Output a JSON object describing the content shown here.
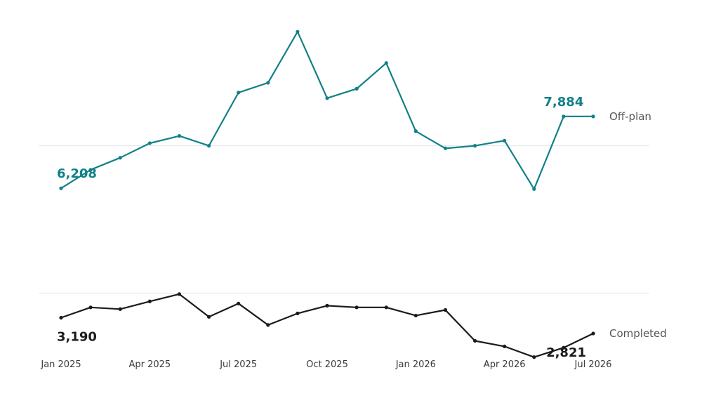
{
  "chart_data": {
    "type": "line",
    "x": [
      "Jan 2025",
      "Feb 2025",
      "Mar 2025",
      "Apr 2025",
      "May 2025",
      "Jun 2025",
      "Jul 2025",
      "Aug 2025",
      "Sep 2025",
      "Oct 2025",
      "Nov 2025",
      "Dec 2025",
      "Jan 2026",
      "Feb 2026",
      "Mar 2026",
      "Apr 2026",
      "May 2026",
      "Jun 2026",
      "Jul 2026"
    ],
    "x_ticks": [
      "Jan 2025",
      "Apr 2025",
      "Jul 2025",
      "Oct 2025",
      "Jan 2026",
      "Apr 2026",
      "Jul 2026"
    ],
    "series": [
      {
        "name": "Off-plan",
        "color": "#128087",
        "values": [
          6208,
          6640,
          6920,
          7260,
          7430,
          7200,
          8440,
          8670,
          9860,
          8310,
          8530,
          9130,
          7540,
          7140,
          7200,
          7320,
          6190,
          7884,
          7884
        ],
        "labels": [
          {
            "index": 0,
            "text": "6,208"
          },
          {
            "index": 17,
            "text": "7,884"
          }
        ]
      },
      {
        "name": "Completed",
        "color": "#1b1b1b",
        "values": [
          3190,
          3430,
          3390,
          3570,
          3740,
          3210,
          3520,
          3020,
          3290,
          3470,
          3430,
          3430,
          3240,
          3370,
          2650,
          2520,
          2270,
          2490,
          2821
        ],
        "labels": [
          {
            "index": 0,
            "text": "3,190"
          },
          {
            "index": 18,
            "text": "2,821"
          }
        ]
      }
    ],
    "gridlines": [
      7200,
      3760
    ],
    "ylim": [
      1200,
      10600
    ],
    "title": "",
    "xlabel": "",
    "ylabel": "",
    "legend": "inline-right"
  }
}
